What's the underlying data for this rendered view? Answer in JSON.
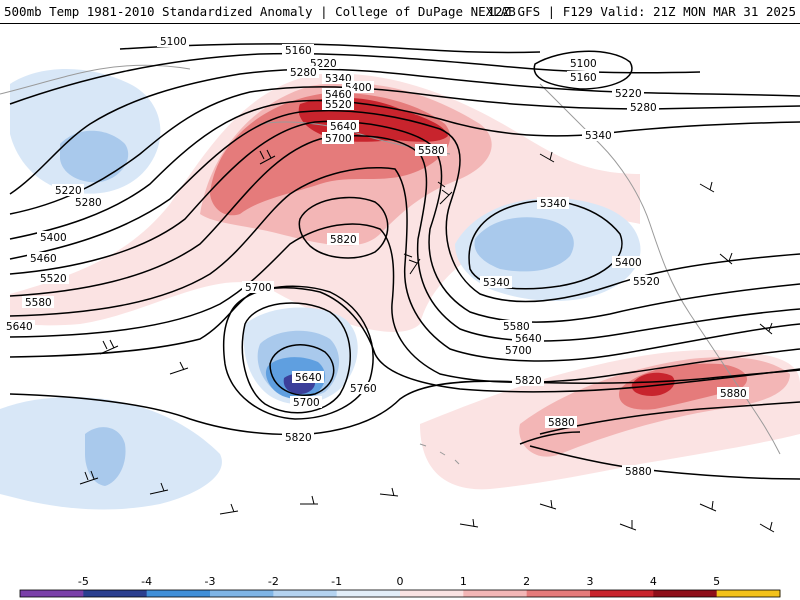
{
  "header": {
    "title_left": "500mb Temp 1981-2010 Standardized Anomaly | College of DuPage NEXLAB",
    "title_right": "12Z GFS | F129 Valid: 21Z MON MAR 31 2025"
  },
  "legend": {
    "ticks": [
      "-5",
      "-4",
      "-3",
      "-2",
      "-1",
      "0",
      "1",
      "2",
      "3",
      "4",
      "5"
    ],
    "colors": [
      "#7a3fa8",
      "#2a3f8f",
      "#3f8fd8",
      "#7fb5e6",
      "#b4d3f0",
      "#e2eef9",
      "#fbe3e3",
      "#f3b6b6",
      "#e57b7b",
      "#c8242d",
      "#8e0f1a",
      "#f3c21a"
    ]
  },
  "map": {
    "height_contour_labels": [
      "5100",
      "5160",
      "5220",
      "5280",
      "5340",
      "5400",
      "5460",
      "5520",
      "5580",
      "5640",
      "5700",
      "5760",
      "5820",
      "5880"
    ],
    "colors": {
      "contour": "#000000",
      "warm_light": "#fbe3e3",
      "warm_mid": "#f3b6b6",
      "warm_strong": "#e57b7b",
      "warm_max": "#c8242d",
      "cold_light": "#d8e7f7",
      "cold_mid": "#a9c9ec",
      "cold_strong": "#5f9fe0",
      "cold_max": "#3b3f9a",
      "coastline": "#9a9a9a",
      "wind_barb": "#000000"
    }
  }
}
